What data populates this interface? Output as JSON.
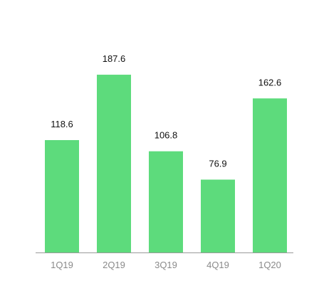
{
  "chart_data": {
    "type": "bar",
    "categories": [
      "1Q19",
      "2Q19",
      "3Q19",
      "4Q19",
      "1Q20"
    ],
    "values": [
      118.6,
      187.6,
      106.8,
      76.9,
      162.6
    ],
    "value_labels": [
      "118.6",
      "187.6",
      "106.8",
      "76.9",
      "162.6"
    ],
    "ylim": [
      0,
      210
    ],
    "grid": false,
    "legend": "none",
    "colors": {
      "bar": "#5ddb7c",
      "axis": "#9a9a9a",
      "value_text": "#111111",
      "tick_text": "#8a8a8a"
    }
  }
}
